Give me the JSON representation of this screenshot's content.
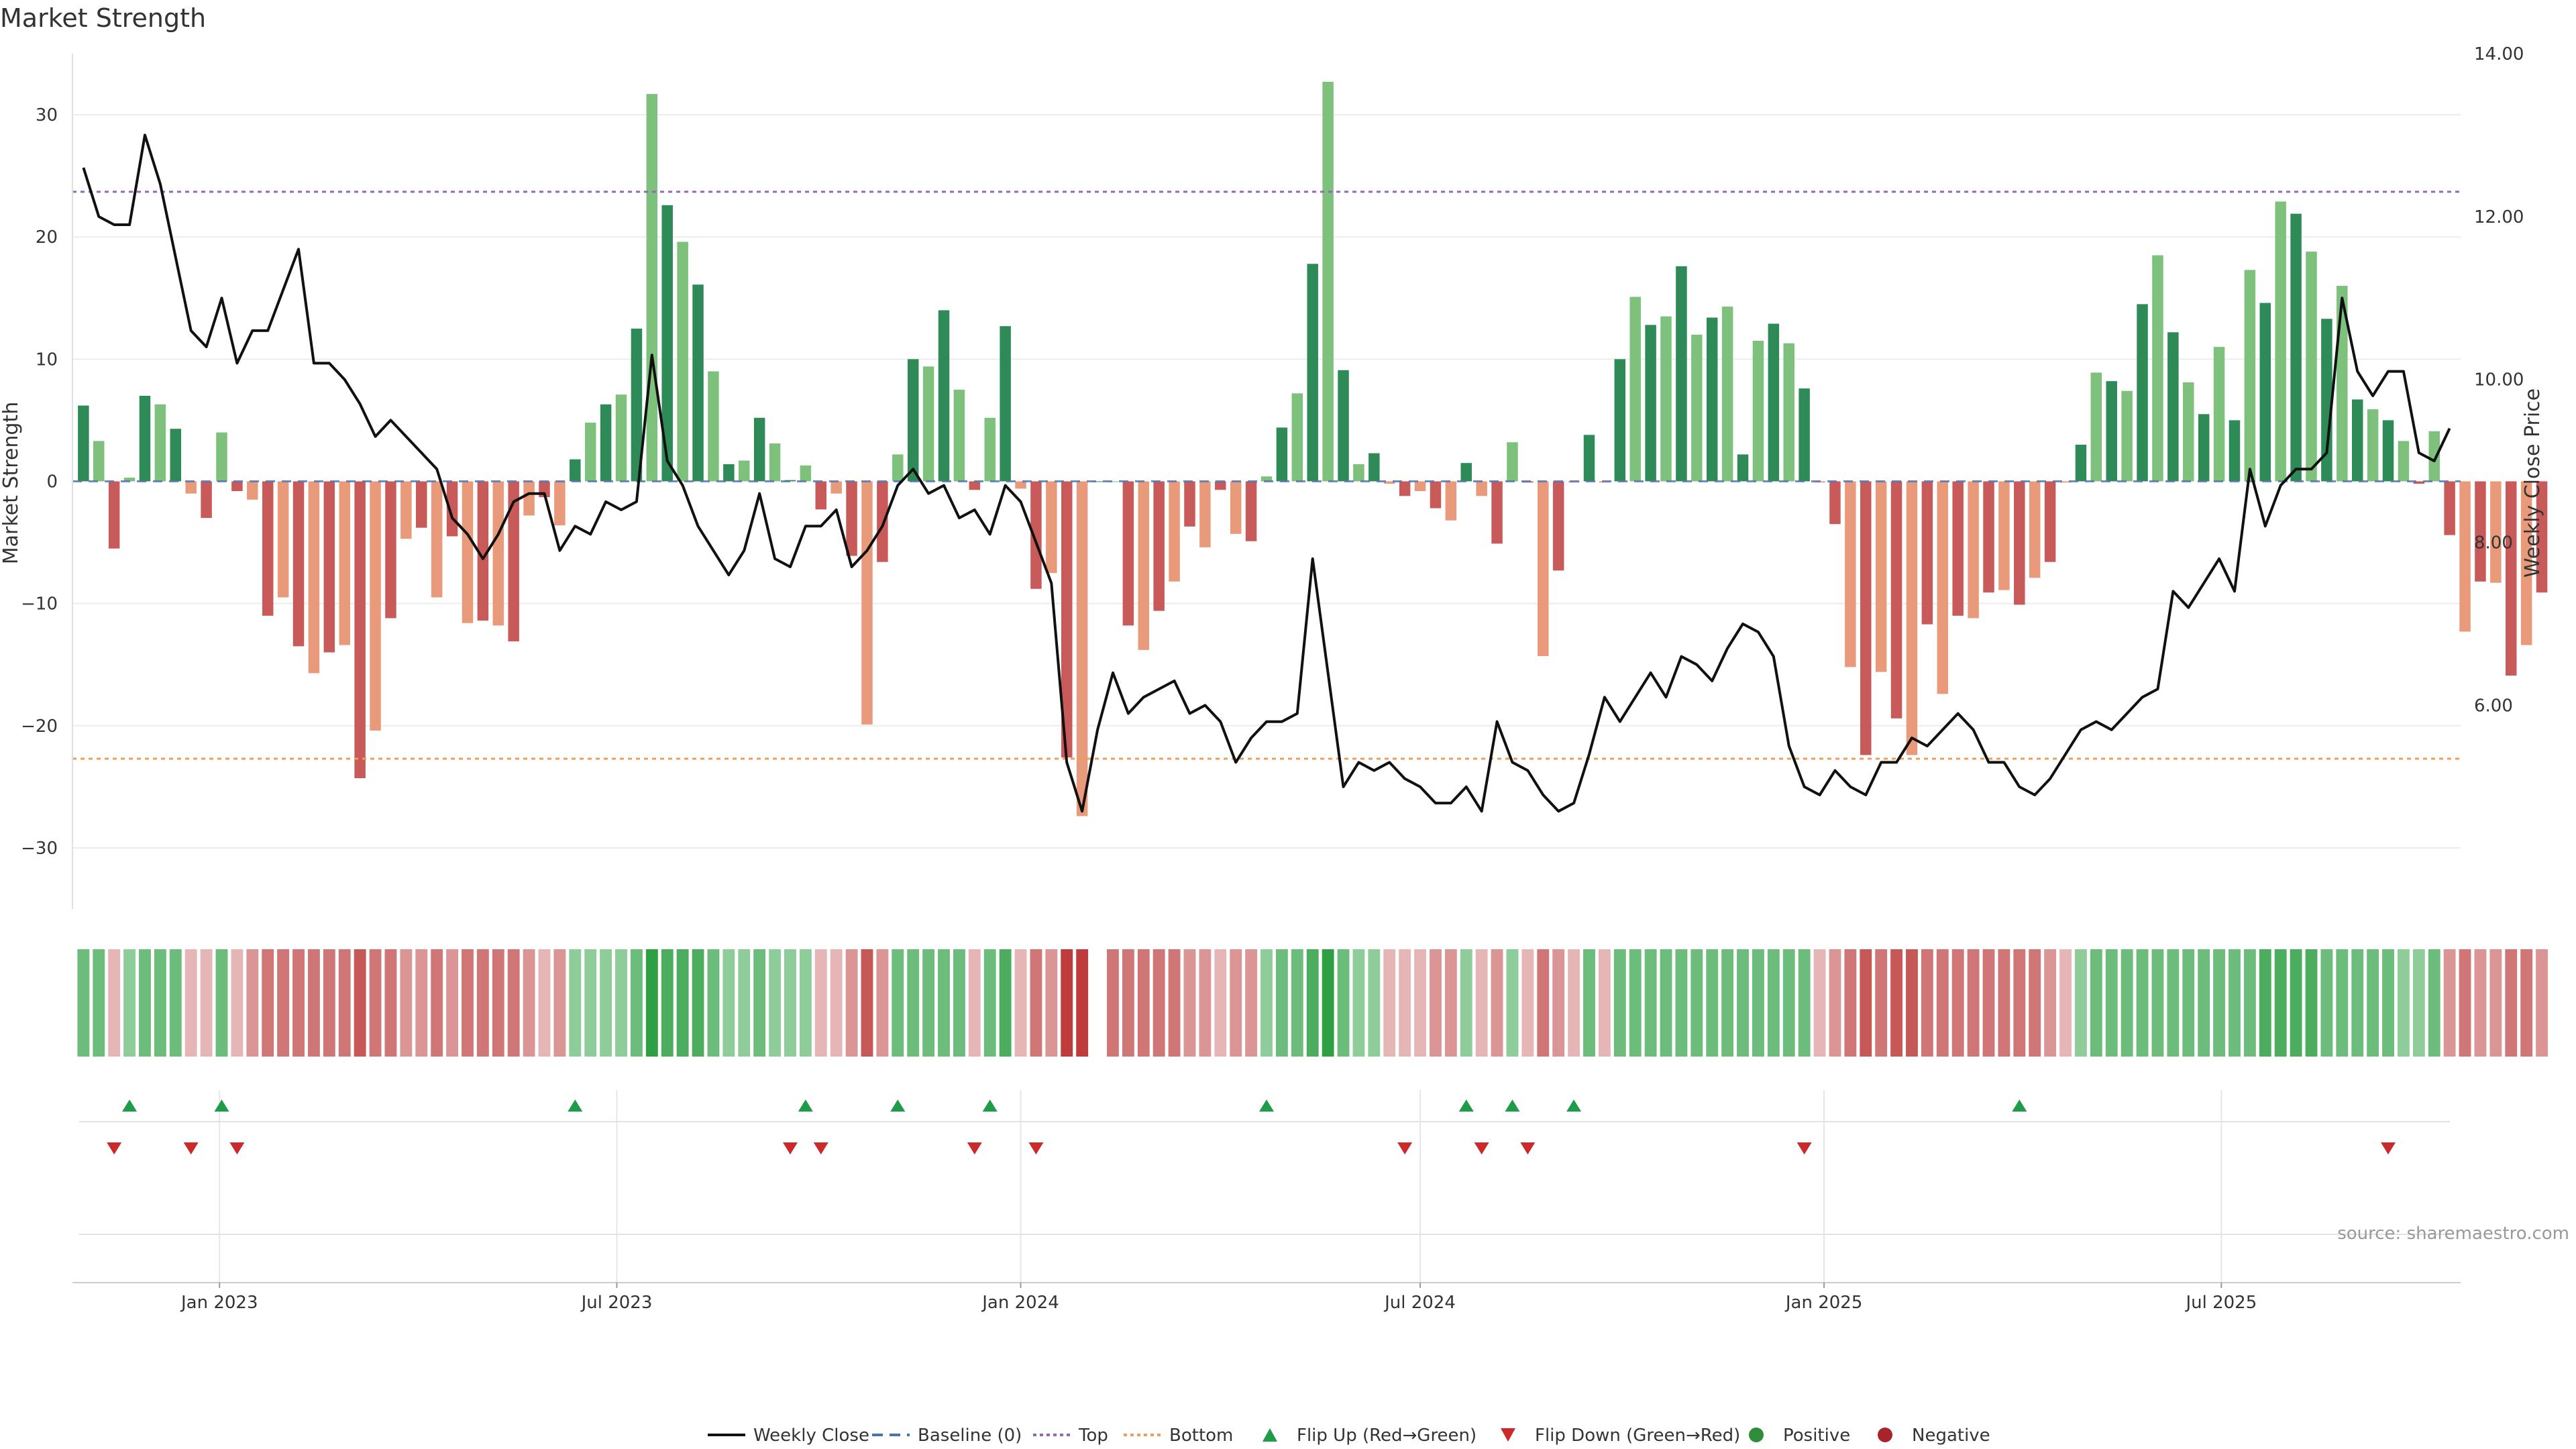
{
  "chart_data": {
    "type": "bar",
    "title": "Market Strength",
    "ylabel_left": "Market Strength",
    "ylabel_right": "Weekly Close Price",
    "source": "source: sharemaestro.com",
    "ylim_left": [
      -35,
      35
    ],
    "ylim_right": [
      3.5,
      14.0
    ],
    "yticks_left": [
      30,
      20,
      10,
      0,
      -10,
      -20,
      -30
    ],
    "ytick_labels_left": [
      "30",
      "20",
      "10",
      "0",
      "−10",
      "−20",
      "−30"
    ],
    "yticks_right": [
      14,
      12,
      10,
      8,
      6
    ],
    "ytick_labels_right": [
      "14.00",
      "12.00",
      "10.00",
      "8.00",
      "6.00"
    ],
    "x_range": [
      "2022-10-26",
      "2025-10-18"
    ],
    "xticks": [
      {
        "date": "2023-01-01",
        "label": "Jan 2023"
      },
      {
        "date": "2023-07-01",
        "label": "Jul 2023"
      },
      {
        "date": "2024-01-01",
        "label": "Jan 2024"
      },
      {
        "date": "2024-07-01",
        "label": "Jul 2024"
      },
      {
        "date": "2025-01-01",
        "label": "Jan 2025"
      },
      {
        "date": "2025-07-01",
        "label": "Jul 2025"
      }
    ],
    "top_threshold": 23.7,
    "bottom_threshold": -22.7,
    "start_date": "2022-10-31",
    "interval_days": 7,
    "series": [
      {
        "name": "Market Strength",
        "values": [
          6.2,
          3.3,
          -5.5,
          0.3,
          7,
          6.3,
          4.3,
          -1,
          -3,
          4,
          -0.8,
          -1.5,
          -11,
          -9.5,
          -13.5,
          -15.7,
          -14,
          -13.4,
          -24.3,
          -20.4,
          -11.2,
          -4.7,
          -3.8,
          -9.5,
          -4.5,
          -11.6,
          -11.4,
          -11.8,
          -13.1,
          -2.8,
          -1.3,
          -3.6,
          1.8,
          4.8,
          6.3,
          7.1,
          12.5,
          31.7,
          22.6,
          19.6,
          16.1,
          9,
          1.4,
          1.7,
          5.2,
          3.1,
          0.1,
          1.3,
          -2.3,
          -1,
          -6.1,
          -19.9,
          -6.6,
          2.2,
          10,
          9.4,
          14,
          7.5,
          -0.7,
          5.2,
          12.7,
          -0.6,
          -8.8,
          -7.5,
          -22.6,
          -27.4,
          0,
          0,
          -11.8,
          -13.8,
          -10.6,
          -8.2,
          -3.7,
          -5.4,
          -0.7,
          -4.3,
          -4.9,
          0.4,
          4.4,
          7.2,
          17.8,
          32.7,
          9.1,
          1.4,
          2.3,
          -0.2,
          -1.2,
          -0.8,
          -2.2,
          -3.2,
          1.5,
          -1.2,
          -5.1,
          3.2,
          -0.1,
          -14.3,
          -7.3,
          -0.1,
          3.8,
          -0.1,
          10,
          15.1,
          12.8,
          13.5,
          17.6,
          12,
          13.4,
          14.3,
          2.2,
          11.5,
          12.9,
          11.3,
          7.6,
          -0.1,
          -3.5,
          -15.2,
          -22.4,
          -15.6,
          -19.4,
          -22.4,
          -11.7,
          -17.4,
          -11,
          -11.2,
          -9.1,
          -8.9,
          -10.1,
          -7.9,
          -6.6,
          -0.1,
          3,
          8.9,
          8.2,
          7.4,
          14.5,
          18.5,
          12.2,
          8.1,
          5.5,
          11,
          5,
          17.3,
          14.6,
          22.9,
          21.9,
          18.8,
          13.3,
          16,
          6.7,
          5.9,
          5,
          3.3,
          -0.2,
          4.1,
          -4.4,
          -12.3,
          -8.2,
          -8.3,
          -15.9,
          -13.4,
          -9.1
        ]
      },
      {
        "name": "Weekly Close",
        "values": [
          12.6,
          12.0,
          11.9,
          11.9,
          13.0,
          12.4,
          11.5,
          10.6,
          10.4,
          11.0,
          10.2,
          10.6,
          10.6,
          11.1,
          11.6,
          10.2,
          10.2,
          10.0,
          9.7,
          9.3,
          9.5,
          9.3,
          9.1,
          8.9,
          8.3,
          8.1,
          7.8,
          8.1,
          8.5,
          8.6,
          8.6,
          7.9,
          8.2,
          8.1,
          8.5,
          8.4,
          8.5,
          10.3,
          9.0,
          8.7,
          8.2,
          7.9,
          7.6,
          7.9,
          8.6,
          7.8,
          7.7,
          8.2,
          8.2,
          8.4,
          7.7,
          7.9,
          8.2,
          8.7,
          8.9,
          8.6,
          8.7,
          8.3,
          8.4,
          8.1,
          8.7,
          8.5,
          8.0,
          7.5,
          5.3,
          4.7,
          5.7,
          6.4,
          5.9,
          6.1,
          6.2,
          6.3,
          5.9,
          6.0,
          5.8,
          5.3,
          5.6,
          5.8,
          5.8,
          5.9,
          7.8,
          6.4,
          5.0,
          5.3,
          5.2,
          5.3,
          5.1,
          5.0,
          4.8,
          4.8,
          5.0,
          4.7,
          5.8,
          5.3,
          5.2,
          4.9,
          4.7,
          4.8,
          5.4,
          6.1,
          5.8,
          6.1,
          6.4,
          6.1,
          6.6,
          6.5,
          6.3,
          6.7,
          7.0,
          6.9,
          6.6,
          5.5,
          5.0,
          4.9,
          5.2,
          5.0,
          4.9,
          5.3,
          5.3,
          5.6,
          5.5,
          5.7,
          5.9,
          5.7,
          5.3,
          5.3,
          5.0,
          4.9,
          5.1,
          5.4,
          5.7,
          5.8,
          5.7,
          5.9,
          6.1,
          6.2,
          7.4,
          7.2,
          7.5,
          7.8,
          7.4,
          8.9,
          8.2,
          8.7,
          8.9,
          8.9,
          9.1,
          11.0,
          10.1,
          9.8,
          10.1,
          10.1,
          9.1,
          9.0,
          9.4
        ]
      }
    ],
    "state_strip": {
      "values": [
        3,
        3,
        -1,
        2,
        3,
        3,
        3,
        -1,
        -1,
        3,
        -1,
        -2,
        -3,
        -3,
        -3,
        -3,
        -3,
        -3,
        -4,
        -3,
        -3,
        -2,
        -2,
        -3,
        -2,
        -3,
        -3,
        -3,
        -3,
        -2,
        -1,
        -2,
        2,
        2,
        2,
        2,
        3,
        5,
        4,
        4,
        4,
        3,
        2,
        2,
        3,
        2,
        2,
        2,
        -1,
        -1,
        -2,
        -4,
        -2,
        3,
        3,
        3,
        3,
        3,
        -1,
        3,
        4,
        -1,
        -3,
        -2,
        -5,
        -5,
        0,
        -3,
        -3,
        -3,
        -3,
        -3,
        -2,
        -2,
        -1,
        -2,
        -2,
        2,
        3,
        3,
        4,
        5,
        3,
        2,
        2,
        -1,
        -1,
        -1,
        -2,
        -2,
        2,
        -1,
        -2,
        2,
        -1,
        -3,
        -2,
        -1,
        3,
        -1,
        3,
        3,
        3,
        3,
        3,
        3,
        3,
        3,
        3,
        3,
        3,
        3,
        3,
        -1,
        -2,
        -3,
        -4,
        -3,
        -4,
        -4,
        -3,
        -3,
        -3,
        -3,
        -3,
        -3,
        -3,
        -3,
        -2,
        -1,
        2,
        3,
        3,
        3,
        3,
        3,
        3,
        3,
        3,
        3,
        3,
        3,
        4,
        4,
        4,
        4,
        3,
        3,
        3,
        3,
        3,
        2,
        2,
        3,
        -2,
        -3,
        -2,
        -2,
        -3,
        -3,
        -2
      ]
    },
    "flip_up_weeks": [
      3,
      9,
      32,
      47,
      53,
      59,
      77,
      90,
      93,
      97,
      126
    ],
    "flip_down_weeks": [
      2,
      7,
      10,
      46,
      48,
      58,
      62,
      86,
      91,
      94,
      112,
      150
    ],
    "legend": [
      {
        "label": "Weekly Close",
        "kind": "line",
        "color": "#111111"
      },
      {
        "label": "Baseline (0)",
        "kind": "dash",
        "color": "#4c72b0"
      },
      {
        "label": "Top",
        "kind": "dot",
        "color": "#9467bd"
      },
      {
        "label": "Bottom",
        "kind": "dot",
        "color": "#e8a05a"
      },
      {
        "label": "Flip Up (Red→Green)",
        "kind": "tri-up",
        "color": "#1e9c4a"
      },
      {
        "label": "Flip Down (Green→Red)",
        "kind": "tri-down",
        "color": "#cc2a2a"
      },
      {
        "label": "Positive",
        "kind": "circle",
        "color": "#2f8c3a"
      },
      {
        "label": "Negative",
        "kind": "circle",
        "color": "#a8242c"
      }
    ],
    "colors": {
      "pos_dark": "#2e8b57",
      "pos_light": "#7dc17d",
      "neg_dark": "#c85a5a",
      "neg_light": "#e99a7a",
      "price_line": "#111111",
      "baseline": "#4c72b0",
      "top": "#9467bd",
      "bottom": "#e8a05a",
      "flip_up": "#1e9c4a",
      "flip_down": "#cc2a2a"
    }
  }
}
